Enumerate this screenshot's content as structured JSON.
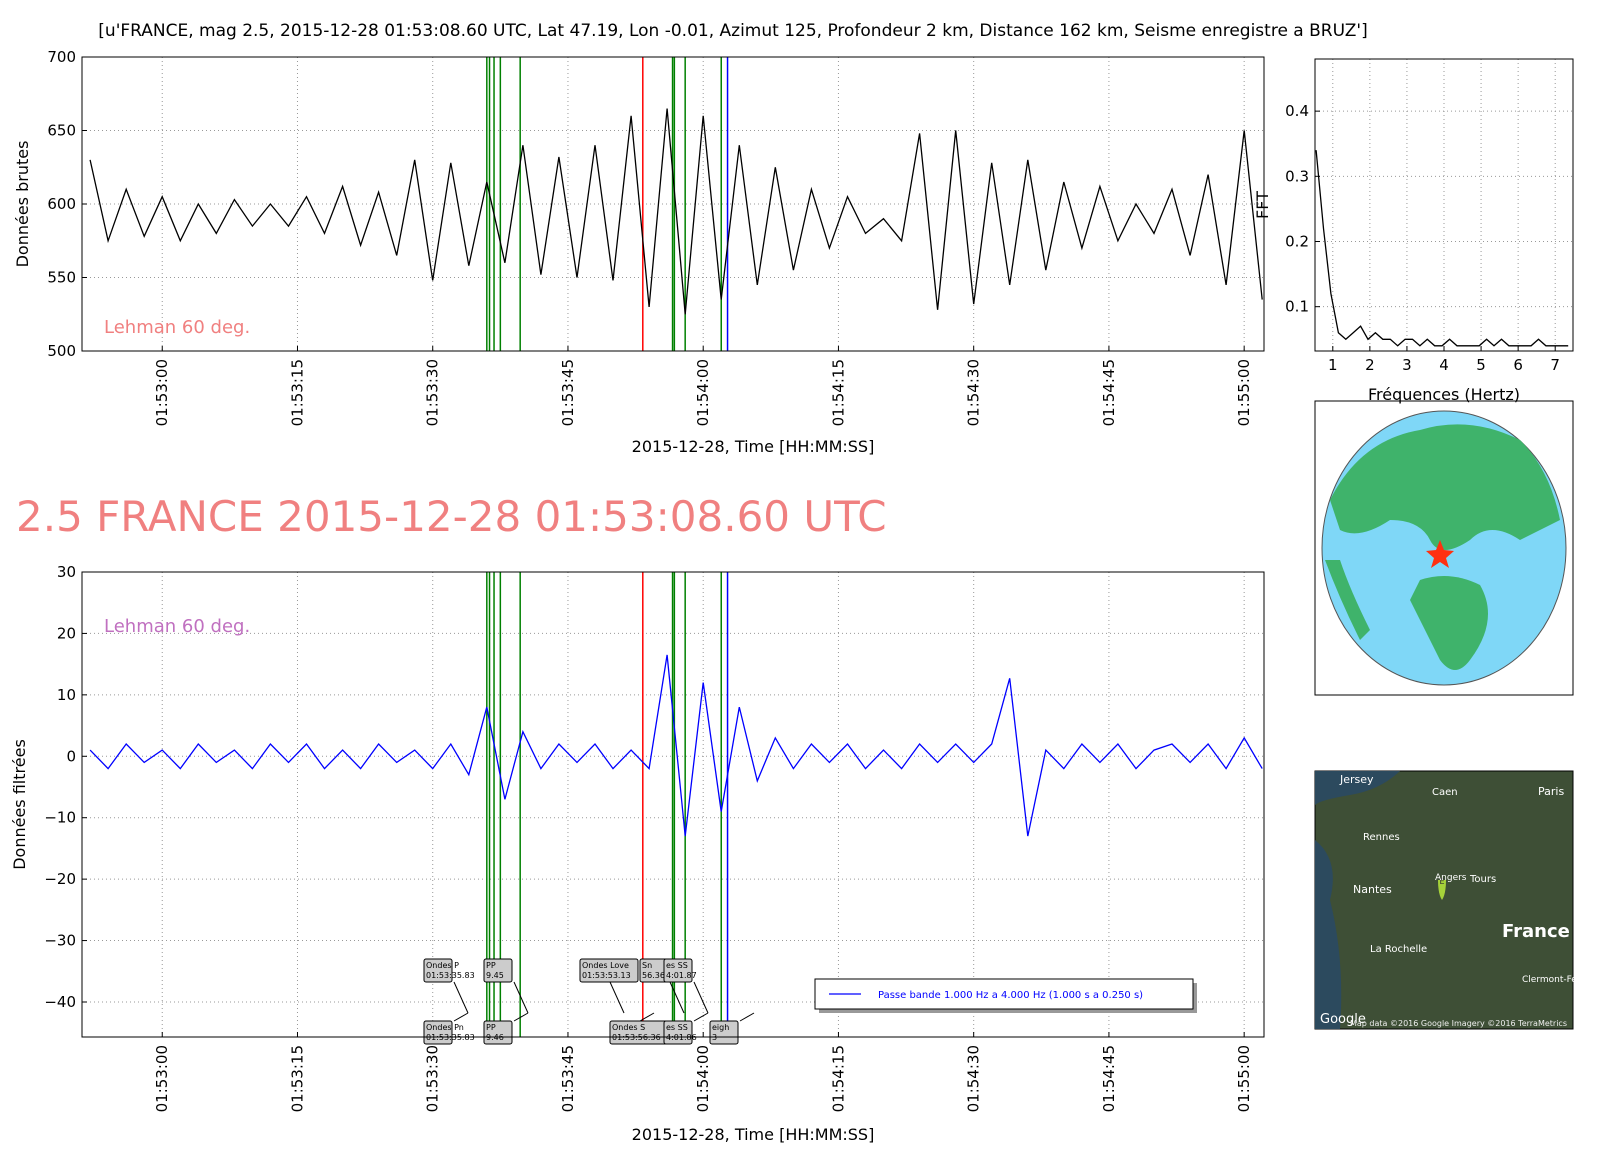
{
  "headline": "2.5 FRANCE 2015-12-28 01:53:08.60 UTC",
  "chart_data": [
    {
      "type": "line",
      "title": "[u'FRANCE, mag 2.5, 2015-12-28 01:53:08.60 UTC, Lat 47.19, Lon -0.01, Azimut 125, Profondeur 2 km, Distance 162 km, Seisme enregistre a BRUZ']",
      "ylabel": "Données brutes",
      "xlabel": "2015-12-28, Time [HH:MM:SS]",
      "annotation": "Lehman 60 deg.",
      "annotation_color": "#f08080",
      "xlim": [
        -8.9,
        122.2
      ],
      "ylim": [
        500,
        700
      ],
      "xticks": [
        {
          "value": 0,
          "label": "01:53:00"
        },
        {
          "value": 15,
          "label": "01:53:15"
        },
        {
          "value": 30,
          "label": "01:53:30"
        },
        {
          "value": 45,
          "label": "01:53:45"
        },
        {
          "value": 60,
          "label": "01:54:00"
        },
        {
          "value": 75,
          "label": "01:54:15"
        },
        {
          "value": 90,
          "label": "01:54:30"
        },
        {
          "value": 105,
          "label": "01:54:45"
        },
        {
          "value": 120,
          "label": "01:55:00"
        }
      ],
      "yticks": [
        500,
        550,
        600,
        650,
        700
      ],
      "grid": true,
      "markers": [
        {
          "x": 36.0,
          "color": "#008000"
        },
        {
          "x": 36.3,
          "color": "#008000"
        },
        {
          "x": 36.8,
          "color": "#008000"
        },
        {
          "x": 37.5,
          "color": "#008000"
        },
        {
          "x": 39.7,
          "color": "#008000"
        },
        {
          "x": 53.3,
          "color": "#ff0000"
        },
        {
          "x": 56.6,
          "color": "#008000"
        },
        {
          "x": 56.8,
          "color": "#008000"
        },
        {
          "x": 58.0,
          "color": "#008000"
        },
        {
          "x": 62.0,
          "color": "#008000"
        },
        {
          "x": 62.7,
          "color": "#0000ff"
        }
      ],
      "series": [
        {
          "color": "#000000",
          "x": [
            -8,
            -6,
            -4,
            -2,
            0,
            2,
            4,
            6,
            8,
            10,
            12,
            14,
            16,
            18,
            20,
            22,
            24,
            26,
            28,
            30,
            32,
            34,
            36,
            38,
            40,
            42,
            44,
            46,
            48,
            50,
            52,
            54,
            56,
            58,
            60,
            62,
            64,
            66,
            68,
            70,
            72,
            74,
            76,
            78,
            80,
            82,
            84,
            86,
            88,
            90,
            92,
            94,
            96,
            98,
            100,
            102,
            104,
            106,
            108,
            110,
            112,
            114,
            116,
            118,
            120,
            122
          ],
          "values": [
            630,
            575,
            610,
            578,
            605,
            575,
            600,
            580,
            603,
            585,
            600,
            585,
            605,
            580,
            612,
            572,
            608,
            565,
            630,
            548,
            628,
            558,
            615,
            560,
            640,
            552,
            632,
            550,
            640,
            548,
            660,
            530,
            665,
            525,
            660,
            535,
            640,
            545,
            625,
            555,
            610,
            570,
            605,
            580,
            590,
            575,
            648,
            528,
            650,
            532,
            628,
            545,
            630,
            555,
            615,
            570,
            612,
            575,
            600,
            580,
            610,
            565,
            620,
            545,
            650,
            535
          ]
        }
      ]
    },
    {
      "type": "line",
      "ylabel": "Données filtrées",
      "xlabel": "2015-12-28, Time [HH:MM:SS]",
      "annotation": "Lehman 60 deg.",
      "annotation_color": "#c070c0",
      "xlim": [
        -8.9,
        122.2
      ],
      "ylim": [
        -45.7,
        30
      ],
      "xticks": [
        {
          "value": 0,
          "label": "01:53:00"
        },
        {
          "value": 15,
          "label": "01:53:15"
        },
        {
          "value": 30,
          "label": "01:53:30"
        },
        {
          "value": 45,
          "label": "01:53:45"
        },
        {
          "value": 60,
          "label": "01:54:00"
        },
        {
          "value": 75,
          "label": "01:54:15"
        },
        {
          "value": 90,
          "label": "01:54:30"
        },
        {
          "value": 105,
          "label": "01:54:45"
        },
        {
          "value": 120,
          "label": "01:55:00"
        }
      ],
      "yticks": [
        {
          "value": -40,
          "label": "−40"
        },
        {
          "value": -30,
          "label": "−30"
        },
        {
          "value": -20,
          "label": "−20"
        },
        {
          "value": -10,
          "label": "−10"
        },
        0,
        10,
        20,
        30
      ],
      "grid": true,
      "markers": [
        {
          "x": 36.0,
          "color": "#008000"
        },
        {
          "x": 36.3,
          "color": "#008000"
        },
        {
          "x": 36.8,
          "color": "#008000"
        },
        {
          "x": 37.5,
          "color": "#008000"
        },
        {
          "x": 39.7,
          "color": "#008000"
        },
        {
          "x": 53.3,
          "color": "#ff0000"
        },
        {
          "x": 56.6,
          "color": "#008000"
        },
        {
          "x": 56.8,
          "color": "#008000"
        },
        {
          "x": 58.0,
          "color": "#008000"
        },
        {
          "x": 62.0,
          "color": "#008000"
        },
        {
          "x": 62.7,
          "color": "#0000ff"
        }
      ],
      "annotations": [
        {
          "lines": [
            "Ondes P",
            "01:53:35.83"
          ]
        },
        {
          "lines": [
            "PP",
            "9.45"
          ]
        },
        {
          "lines": [
            "Ondes Love",
            "01:53:53.13"
          ]
        },
        {
          "lines": [
            "Sn",
            "56.36"
          ]
        },
        {
          "lines": [
            "es SS",
            "4:01.87"
          ]
        },
        {
          "lines": [
            "Ondes Pn",
            "01:53:35.83"
          ]
        },
        {
          "lines": [
            "PP",
            "9.46"
          ]
        },
        {
          "lines": [
            "Ondes S",
            "01:53:56.36"
          ]
        },
        {
          "lines": [
            "es SS",
            "4:01.86"
          ]
        },
        {
          "lines": [
            "eigh",
            "3"
          ]
        }
      ],
      "legend": "lower right",
      "series": [
        {
          "name": "Passe bande 1.000 Hz a 4.000 Hz (1.000 s a 0.250 s)",
          "color": "#0000ff",
          "x": [
            -8,
            -6,
            -4,
            -2,
            0,
            2,
            4,
            6,
            8,
            10,
            12,
            14,
            16,
            18,
            20,
            22,
            24,
            26,
            28,
            30,
            32,
            34,
            36,
            38,
            40,
            42,
            44,
            46,
            48,
            50,
            52,
            54,
            56,
            58,
            60,
            62,
            64,
            66,
            68,
            70,
            72,
            74,
            76,
            78,
            80,
            82,
            84,
            86,
            88,
            90,
            92,
            94,
            96,
            98,
            100,
            102,
            104,
            106,
            108,
            110,
            112,
            114,
            116,
            118,
            120,
            122
          ],
          "values": [
            1,
            -2,
            2,
            -1,
            1,
            -2,
            2,
            -1,
            1,
            -2,
            2,
            -1,
            2,
            -2,
            1,
            -2,
            2,
            -1,
            1,
            -2,
            2,
            -3,
            8,
            -7,
            4,
            -2,
            2,
            -1,
            2,
            -2,
            1,
            -2,
            16.5,
            -13,
            12,
            -9,
            8,
            -4,
            3,
            -2,
            2,
            -1,
            2,
            -2,
            1,
            -2,
            2,
            -1,
            2,
            -1,
            2,
            12.7,
            -13,
            1,
            -2,
            2,
            -1,
            2,
            -2,
            1,
            2,
            -1,
            2,
            -2,
            3,
            -2
          ]
        }
      ]
    },
    {
      "type": "line",
      "xlabel": "Fréquences (Hertz)",
      "ylabel": "FFT",
      "xlim": [
        0.52,
        7.48
      ],
      "ylim": [
        0.032,
        0.48
      ],
      "xticks": [
        1,
        2,
        3,
        4,
        5,
        6,
        7
      ],
      "yticks": [
        0.1,
        0.2,
        0.3,
        0.4
      ],
      "grid": true,
      "series": [
        {
          "color": "#000000",
          "x": [
            0.55,
            0.75,
            0.95,
            1.15,
            1.35,
            1.55,
            1.75,
            1.95,
            2.15,
            2.35,
            2.55,
            2.75,
            2.95,
            3.15,
            3.35,
            3.55,
            3.75,
            3.95,
            4.15,
            4.35,
            4.55,
            4.75,
            4.95,
            5.15,
            5.35,
            5.55,
            5.75,
            5.95,
            6.15,
            6.35,
            6.55,
            6.75,
            6.95,
            7.15,
            7.35
          ],
          "values": [
            0.34,
            0.22,
            0.12,
            0.06,
            0.05,
            0.06,
            0.07,
            0.05,
            0.06,
            0.05,
            0.05,
            0.04,
            0.05,
            0.05,
            0.04,
            0.05,
            0.04,
            0.04,
            0.05,
            0.04,
            0.04,
            0.04,
            0.04,
            0.05,
            0.04,
            0.05,
            0.04,
            0.04,
            0.04,
            0.04,
            0.05,
            0.04,
            0.04,
            0.04,
            0.04
          ]
        }
      ]
    }
  ],
  "map": {
    "labels": [
      "Jersey",
      "Caen",
      "Paris",
      "Rennes",
      "Angers",
      "Tours",
      "Nantes",
      "France",
      "La Rochelle",
      "Clermont-Ferrand",
      "Google",
      "Map data ©2016 Google  Imagery ©2016 TerraMetrics"
    ],
    "marker": "E"
  }
}
